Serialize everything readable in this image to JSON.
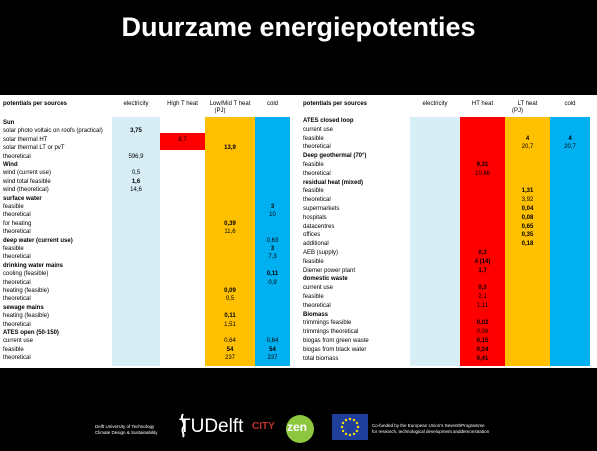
{
  "title": "Duurzame energiepotenties",
  "tables": [
    {
      "header": {
        "label": "potentials per sources",
        "columns": [
          "electricity",
          "High T heat",
          "Low/Mid T heat",
          "cold"
        ],
        "unit": "(PJ)"
      },
      "rows": [
        {
          "label": "Sun",
          "heading": true
        },
        {
          "label": "solar photo voltaic on roofs (practical)",
          "cells": {
            "0": "3,75"
          },
          "bold": true
        },
        {
          "label": "solar thermal HT",
          "cells": {
            "1": "8,7"
          }
        },
        {
          "label": "solar thermal LT or pvT",
          "cells": {
            "2": "13,9"
          },
          "bold": true
        },
        {
          "label": "theoretical",
          "cells": {
            "0": "596,9"
          }
        },
        {
          "label": "Wind",
          "heading": true
        },
        {
          "label": "wind (current use)",
          "cells": {
            "0": "0,5"
          }
        },
        {
          "label": "wind total feasible",
          "cells": {
            "0": "1,6"
          },
          "bold": true
        },
        {
          "label": "wind (theoretical)",
          "cells": {
            "0": "14,6"
          }
        },
        {
          "label": "surface water",
          "heading": true
        },
        {
          "label": "feasible",
          "cells": {
            "3": "3"
          },
          "bold": true
        },
        {
          "label": "theoretical",
          "cells": {
            "3": "10"
          }
        },
        {
          "label": "for heating",
          "cells": {
            "2": "0,39"
          },
          "bold": true
        },
        {
          "label": "theoretical",
          "cells": {
            "2": "11,6"
          }
        },
        {
          "label": "deep water (current use)",
          "heading": true,
          "cells": {
            "3": "0,63"
          }
        },
        {
          "label": "feasible",
          "cells": {
            "3": "3"
          },
          "bold": true
        },
        {
          "label": "theoretical",
          "cells": {
            "3": "7,3"
          }
        },
        {
          "label": "drinking water mains",
          "heading": true
        },
        {
          "label": "cooling (feasible)",
          "cells": {
            "3": "0,11"
          },
          "bold": true
        },
        {
          "label": "theoretical",
          "cells": {
            "3": "0,9"
          }
        },
        {
          "label": "heating (feasible)",
          "cells": {
            "2": "0,09"
          },
          "bold": true
        },
        {
          "label": "theoretical",
          "cells": {
            "2": "0,5"
          }
        },
        {
          "label": "sewage mains",
          "heading": true
        },
        {
          "label": "heating (feasible)",
          "cells": {
            "2": "0,11"
          },
          "bold": true
        },
        {
          "label": "theoretical",
          "cells": {
            "2": "1,51"
          }
        },
        {
          "label": "ATES open (50-150)",
          "heading": true
        },
        {
          "label": "current use",
          "cells": {
            "2": "0,64",
            "3": "0,64"
          }
        },
        {
          "label": "feasible",
          "cells": {
            "2": "54",
            "3": "54"
          },
          "bold": true
        },
        {
          "label": "theoretical",
          "cells": {
            "2": "237",
            "3": "237"
          }
        }
      ]
    },
    {
      "header": {
        "label": "potentials per sources",
        "columns": [
          "electricity",
          "HT heat",
          "LT heat",
          "cold"
        ],
        "unit": "(PJ)"
      },
      "rows": [
        {
          "label": "ATES closed loop",
          "heading": true
        },
        {
          "label": "current use"
        },
        {
          "label": "feasible",
          "cells": {
            "2": "4",
            "3": "4"
          },
          "bold": true
        },
        {
          "label": "theoretical",
          "cells": {
            "2": "20,7",
            "3": "20,7"
          }
        },
        {
          "label": "Deep geothermal (70°)",
          "heading": true
        },
        {
          "label": "feasible",
          "cells": {
            "1": "9,31"
          },
          "bold": true
        },
        {
          "label": "theoretical",
          "cells": {
            "1": "10,86"
          }
        },
        {
          "label": "residual heat (mixed)",
          "heading": true
        },
        {
          "label": "feasible",
          "cells": {
            "2": "1,31"
          },
          "bold": true
        },
        {
          "label": "theoretical",
          "cells": {
            "2": "3,92"
          }
        },
        {
          "label": "supermarkets",
          "cells": {
            "2": "0,04"
          },
          "bold": true
        },
        {
          "label": "hospitals",
          "cells": {
            "2": "0,08"
          },
          "bold": true
        },
        {
          "label": "datacentres",
          "cells": {
            "2": "0,65"
          },
          "bold": true
        },
        {
          "label": "offices",
          "cells": {
            "2": "0,35"
          },
          "bold": true
        },
        {
          "label": "additional",
          "cells": {
            "2": "0,18"
          },
          "bold": true
        },
        {
          "label": "AEB (supply)",
          "cells": {
            "1": "0,3"
          },
          "bold": true
        },
        {
          "label": "feasible",
          "cells": {
            "1": "4 (14)"
          },
          "bold": true
        },
        {
          "label": "Diemer power plant",
          "cells": {
            "1": "1,7"
          },
          "bold": true
        },
        {
          "label": "domestic waste",
          "heading": true
        },
        {
          "label": "current use",
          "cells": {
            "1": "0,3"
          },
          "bold": true
        },
        {
          "label": "feasible",
          "cells": {
            "1": "2,1"
          }
        },
        {
          "label": "theoretical",
          "cells": {
            "1": "1,11"
          }
        },
        {
          "label": "Biomass",
          "heading": true
        },
        {
          "label": "trimmings feasible",
          "cells": {
            "1": "0,02"
          },
          "bold": true
        },
        {
          "label": "trimmings theoretical",
          "cells": {
            "1": "0,06"
          }
        },
        {
          "label": "biogas from green waste",
          "cells": {
            "1": "0,15"
          },
          "bold": true
        },
        {
          "label": "biogas from black water",
          "cells": {
            "1": "0,24"
          },
          "bold": true
        },
        {
          "label": "total biomass",
          "cells": {
            "1": "0,41"
          },
          "bold": true
        }
      ]
    }
  ],
  "footer": {
    "university": "Delft University of Technology",
    "department": "Climate Design & Sustainability",
    "logo_tu": "TUDelft",
    "logo_city": "CITY",
    "logo_zen": "zen",
    "eu_line1": "Co-funded by the European Union's SeventhProgramme",
    "eu_line2": "for research, technological development anddemonstration"
  }
}
